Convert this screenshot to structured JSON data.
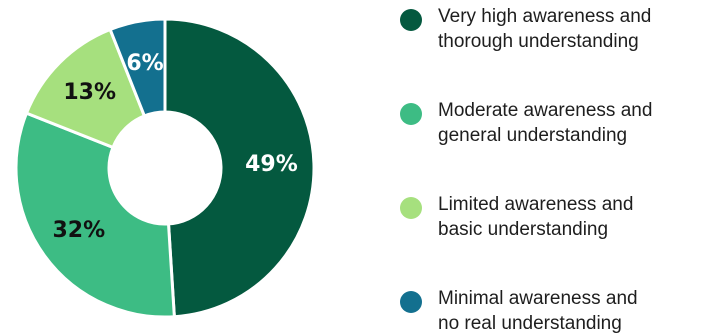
{
  "chart_data": {
    "type": "pie",
    "title": "",
    "categories": [
      "Very high awareness and thorough understanding",
      "Moderate awareness and general understanding",
      "Limited awareness and basic understanding",
      "Minimal awareness and no real understanding"
    ],
    "values": [
      49,
      32,
      13,
      6
    ],
    "labels": [
      "49%",
      "32%",
      "13%",
      "6%"
    ],
    "colors": [
      "#04593f",
      "#3dbc84",
      "#a6e07e",
      "#13708f"
    ],
    "label_colors": [
      "#ffffff",
      "#111111",
      "#111111",
      "#ffffff"
    ],
    "donut": true,
    "legend_position": "right"
  },
  "legend": {
    "items": [
      {
        "line1": "Very high awareness and",
        "line2": "thorough understanding"
      },
      {
        "line1": "Moderate awareness and",
        "line2": "general understanding"
      },
      {
        "line1": "Limited awareness and",
        "line2": "basic understanding"
      },
      {
        "line1": "Minimal awareness and",
        "line2": "no real understanding"
      }
    ]
  }
}
